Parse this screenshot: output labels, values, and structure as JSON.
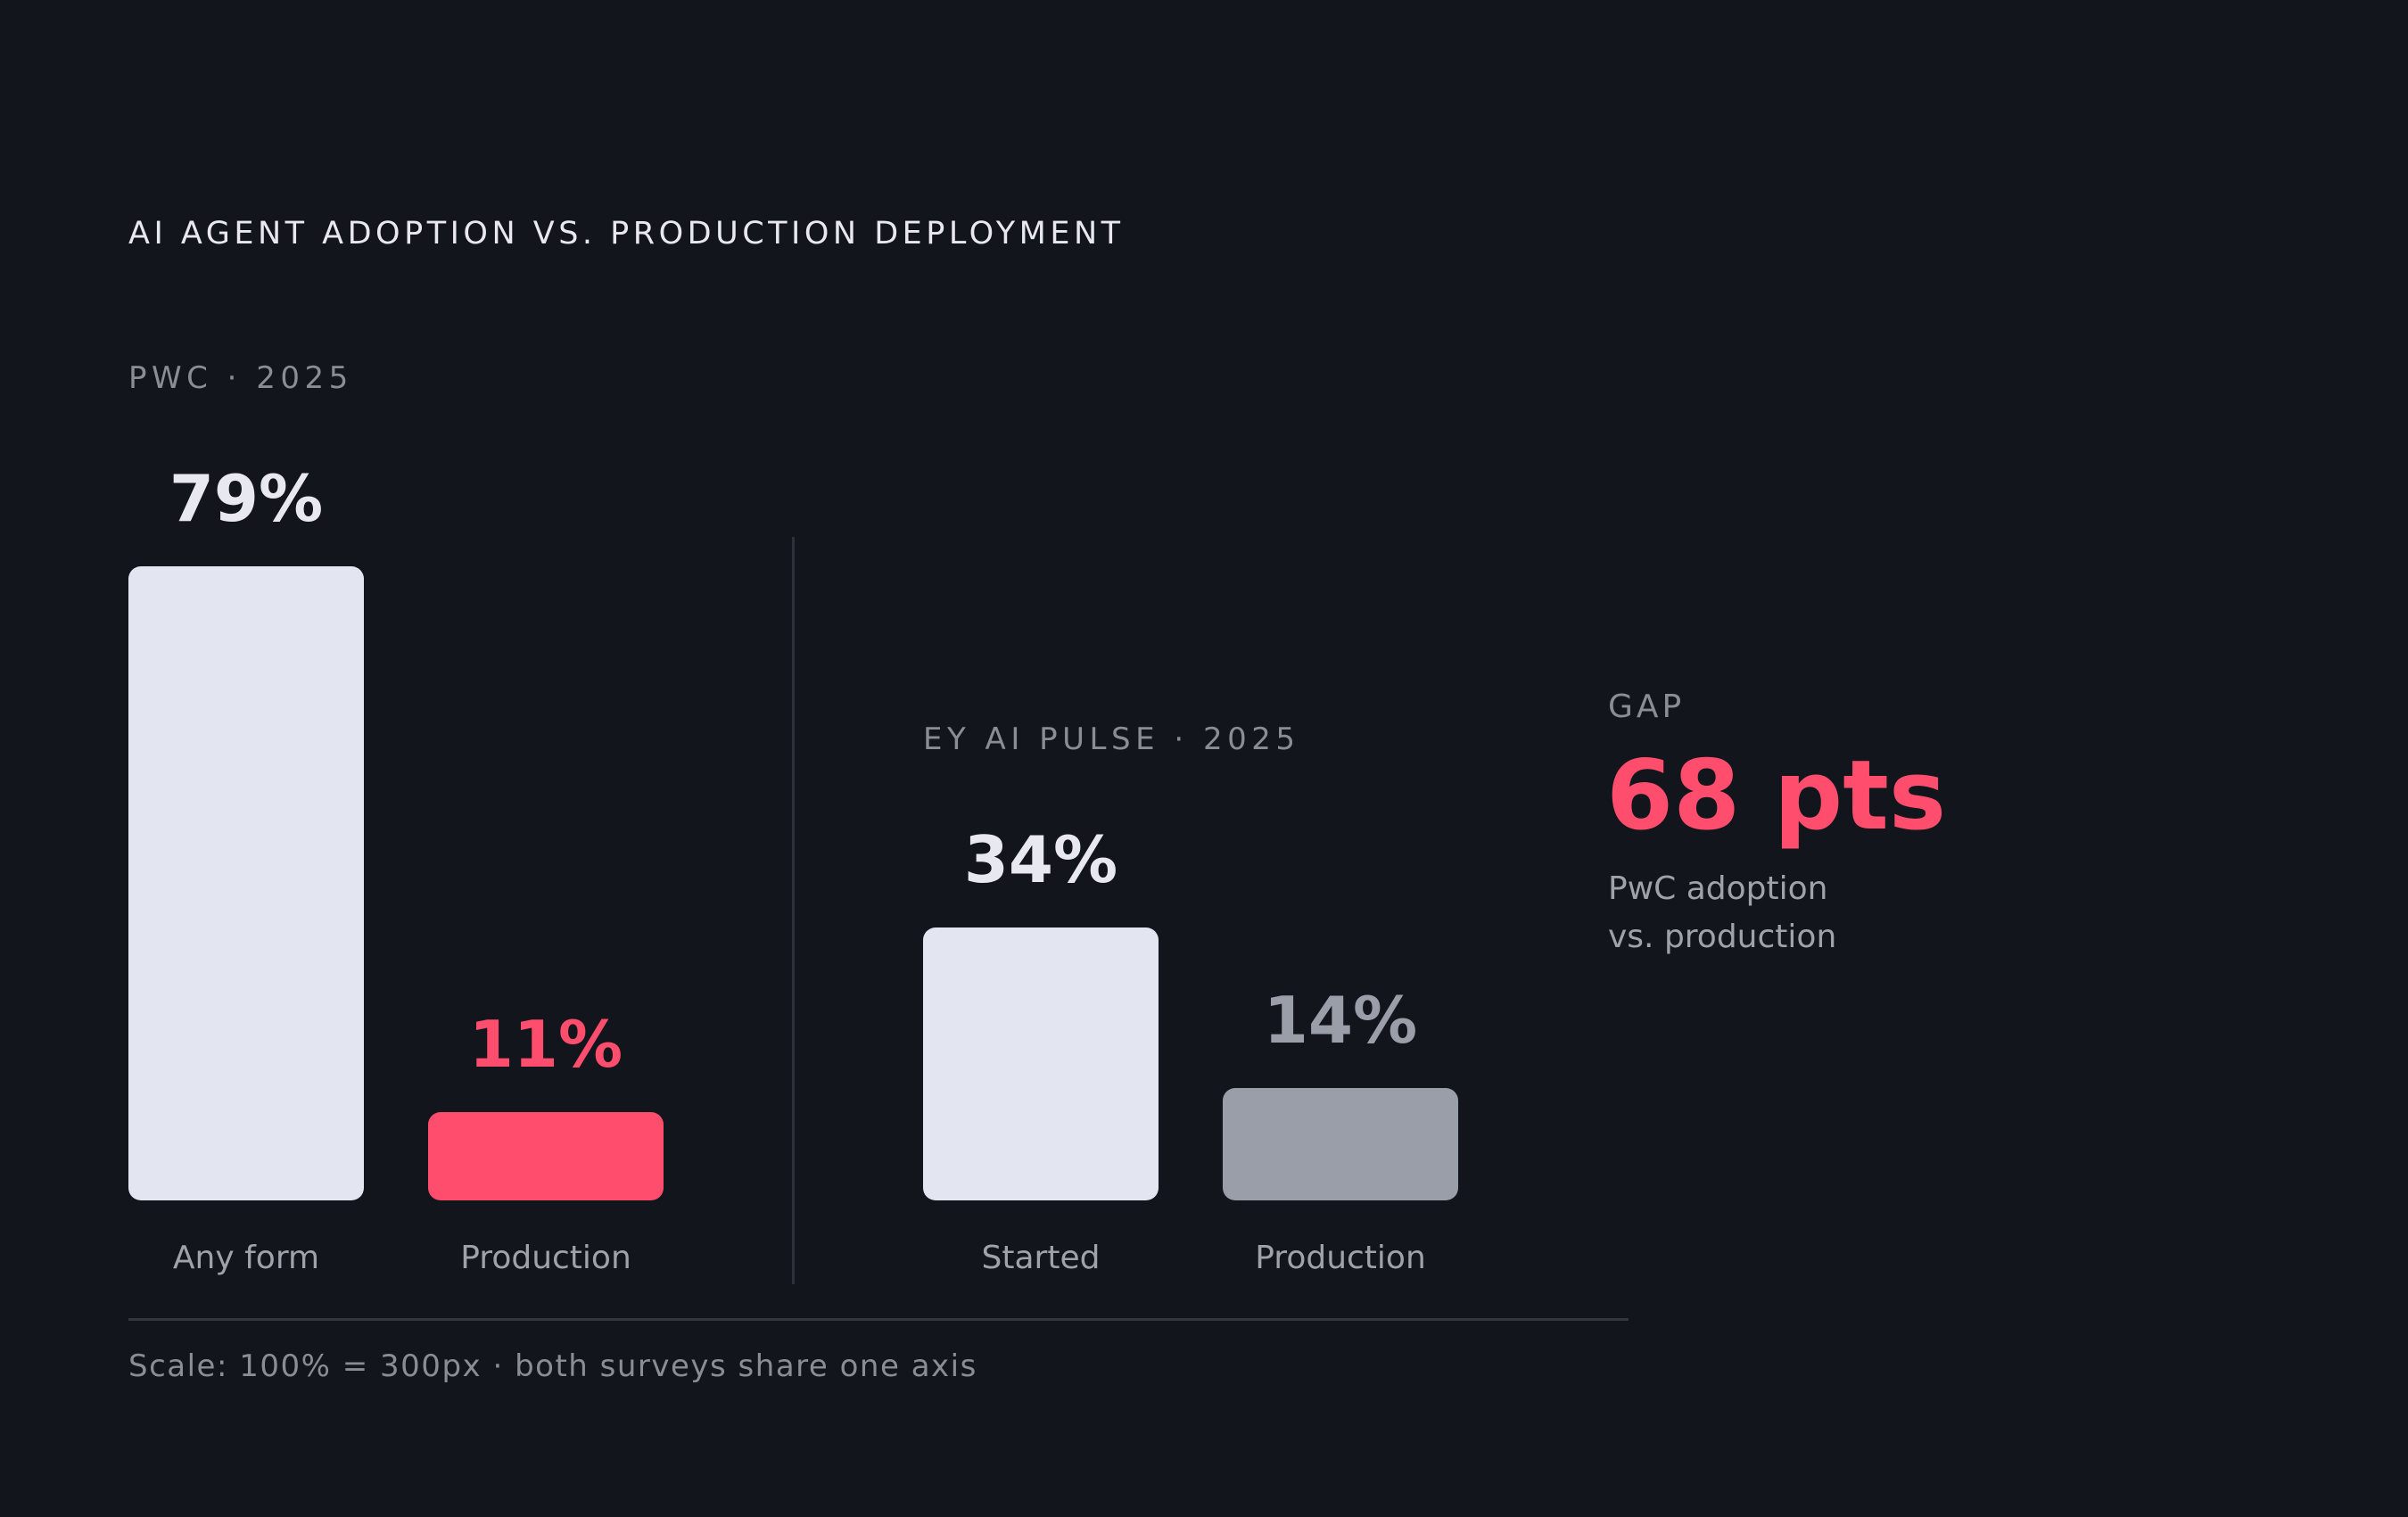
{
  "chart_data": {
    "type": "bar",
    "title": "AI AGENT ADOPTION VS. PRODUCTION DEPLOYMENT",
    "ylim": [
      0,
      100
    ],
    "panels": [
      {
        "label": "PWC · 2025",
        "categories": [
          "Any form",
          "Production"
        ],
        "values": [
          79,
          11
        ],
        "value_labels": [
          "79%",
          "11%"
        ],
        "colors": [
          "#e3e5f0",
          "#ff4d6d"
        ],
        "label_colors": [
          "#e8e9f0",
          "#ff4d6d"
        ]
      },
      {
        "label": "EY AI PULSE · 2025",
        "categories": [
          "Started",
          "Production"
        ],
        "values": [
          34,
          14
        ],
        "value_labels": [
          "34%",
          "14%"
        ],
        "colors": [
          "#e3e5f0",
          "#9a9ea8"
        ],
        "label_colors": [
          "#e8e9f0",
          "#9a9ea8"
        ]
      }
    ],
    "annotation": {
      "label": "GAP",
      "value": "68 pts",
      "note_line1": "PwC adoption",
      "note_line2": "vs. production",
      "color": "#ff4d6d"
    },
    "footnote": "Scale: 100% = 300px · both surveys share one axis"
  }
}
